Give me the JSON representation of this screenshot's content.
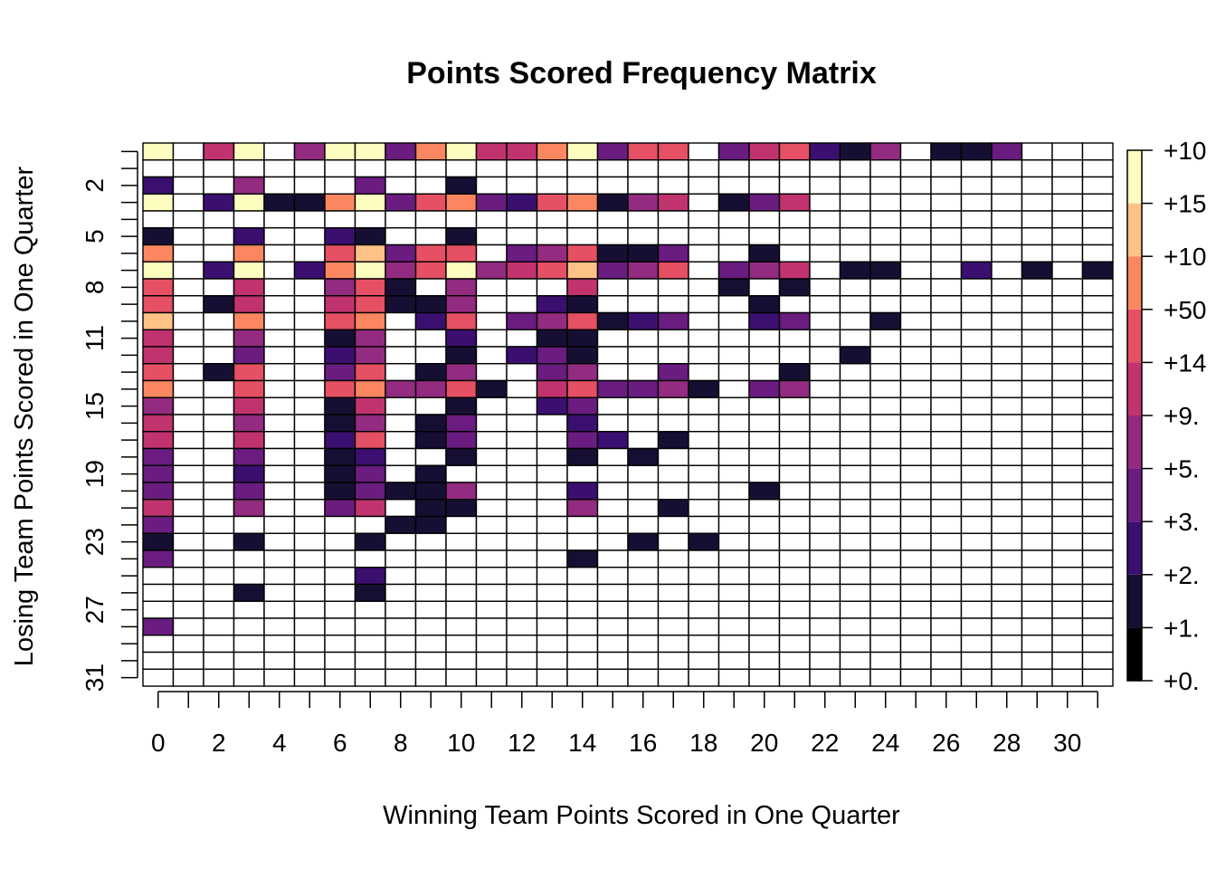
{
  "chart_data": {
    "type": "heatmap",
    "title": "Points Scored Frequency Matrix",
    "xlabel": "Winning Team Points Scored in One Quarter",
    "ylabel": "Losing Team Points Scored in One Quarter",
    "x_values": [
      0,
      1,
      2,
      3,
      4,
      5,
      6,
      7,
      8,
      9,
      10,
      11,
      12,
      13,
      14,
      15,
      16,
      17,
      18,
      19,
      20,
      21,
      22,
      23,
      24,
      25,
      26,
      27,
      28,
      29,
      30,
      31
    ],
    "y_values": [
      0,
      1,
      2,
      3,
      4,
      5,
      6,
      7,
      8,
      9,
      10,
      11,
      12,
      13,
      14,
      15,
      16,
      17,
      18,
      19,
      20,
      21,
      22,
      23,
      24,
      25,
      26,
      27,
      28,
      29,
      30,
      31
    ],
    "x_tick_labels": [
      "0",
      "2",
      "4",
      "6",
      "8",
      "10",
      "12",
      "14",
      "16",
      "18",
      "20",
      "22",
      "24",
      "26",
      "28",
      "30"
    ],
    "y_tick_labels": [
      "2",
      "5",
      "8",
      "11",
      "15",
      "19",
      "23",
      "27",
      "31"
    ],
    "legend_labels": [
      "+0.",
      "+1.",
      "+2.",
      "+3.",
      "+5.",
      "+9.",
      "+14",
      "+50",
      "+10",
      "+15",
      "+10"
    ],
    "colors": [
      "#000004",
      "#170F33",
      "#3B0F70",
      "#6A1C80",
      "#932B80",
      "#C1336F",
      "#E55064",
      "#FB8761",
      "#FEC287",
      "#FCFDBF"
    ],
    "grid": true,
    "legend": "right",
    "matrix": [
      [
        10,
        0,
        6,
        10,
        0,
        5,
        10,
        10,
        4,
        8,
        10,
        6,
        6,
        8,
        10,
        4,
        7,
        7,
        0,
        4,
        6,
        7,
        3,
        2,
        5,
        0,
        2,
        2,
        4,
        0,
        0,
        0
      ],
      [
        0,
        0,
        0,
        0,
        0,
        0,
        0,
        0,
        0,
        0,
        0,
        0,
        0,
        0,
        0,
        0,
        0,
        0,
        0,
        0,
        0,
        0,
        0,
        0,
        0,
        0,
        0,
        0,
        0,
        0,
        0,
        0
      ],
      [
        3,
        0,
        0,
        5,
        0,
        0,
        0,
        4,
        0,
        0,
        2,
        0,
        0,
        0,
        0,
        0,
        0,
        0,
        0,
        0,
        0,
        0,
        0,
        0,
        0,
        0,
        0,
        0,
        0,
        0,
        0,
        0
      ],
      [
        10,
        0,
        3,
        10,
        2,
        2,
        8,
        10,
        4,
        7,
        8,
        4,
        3,
        7,
        8,
        2,
        5,
        6,
        0,
        2,
        4,
        6,
        0,
        0,
        0,
        0,
        0,
        0,
        0,
        0,
        0,
        0
      ],
      [
        0,
        0,
        0,
        0,
        0,
        0,
        0,
        0,
        0,
        0,
        0,
        0,
        0,
        0,
        0,
        0,
        0,
        0,
        0,
        0,
        0,
        0,
        0,
        0,
        0,
        0,
        0,
        0,
        0,
        0,
        0,
        0
      ],
      [
        2,
        0,
        0,
        3,
        0,
        0,
        3,
        2,
        0,
        0,
        2,
        0,
        0,
        0,
        0,
        0,
        0,
        0,
        0,
        0,
        0,
        0,
        0,
        0,
        0,
        0,
        0,
        0,
        0,
        0,
        0,
        0
      ],
      [
        8,
        0,
        0,
        8,
        0,
        0,
        7,
        9,
        4,
        7,
        7,
        0,
        4,
        5,
        7,
        2,
        2,
        4,
        0,
        0,
        2,
        0,
        0,
        0,
        0,
        0,
        0,
        0,
        0,
        0,
        0,
        0
      ],
      [
        10,
        0,
        3,
        10,
        0,
        3,
        8,
        10,
        5,
        7,
        10,
        5,
        6,
        7,
        9,
        4,
        5,
        7,
        0,
        4,
        5,
        6,
        0,
        2,
        2,
        0,
        0,
        3,
        0,
        2,
        0,
        2
      ],
      [
        7,
        0,
        0,
        6,
        0,
        0,
        5,
        7,
        2,
        0,
        5,
        0,
        0,
        0,
        6,
        0,
        0,
        0,
        0,
        2,
        0,
        2,
        0,
        0,
        0,
        0,
        0,
        0,
        0,
        0,
        0,
        0
      ],
      [
        7,
        0,
        2,
        6,
        0,
        0,
        6,
        7,
        2,
        2,
        5,
        0,
        0,
        3,
        2,
        0,
        0,
        0,
        0,
        0,
        2,
        0,
        0,
        0,
        0,
        0,
        0,
        0,
        0,
        0,
        0,
        0
      ],
      [
        9,
        0,
        0,
        8,
        0,
        0,
        7,
        8,
        0,
        3,
        7,
        0,
        4,
        5,
        7,
        2,
        3,
        4,
        0,
        0,
        3,
        4,
        0,
        0,
        2,
        0,
        0,
        0,
        0,
        0,
        0,
        0
      ],
      [
        6,
        0,
        0,
        5,
        0,
        0,
        2,
        5,
        0,
        0,
        3,
        0,
        0,
        2,
        2,
        0,
        0,
        0,
        0,
        0,
        0,
        0,
        0,
        0,
        0,
        0,
        0,
        0,
        0,
        0,
        0,
        0
      ],
      [
        6,
        0,
        0,
        4,
        0,
        0,
        3,
        5,
        0,
        0,
        2,
        0,
        3,
        4,
        2,
        0,
        0,
        0,
        0,
        0,
        0,
        0,
        0,
        2,
        0,
        0,
        0,
        0,
        0,
        0,
        0,
        0
      ],
      [
        7,
        0,
        2,
        7,
        0,
        0,
        4,
        7,
        0,
        2,
        5,
        0,
        0,
        4,
        5,
        0,
        0,
        4,
        0,
        0,
        0,
        2,
        0,
        0,
        0,
        0,
        0,
        0,
        0,
        0,
        0,
        0
      ],
      [
        8,
        0,
        0,
        7,
        0,
        0,
        7,
        8,
        5,
        5,
        7,
        2,
        0,
        6,
        7,
        4,
        4,
        5,
        2,
        0,
        4,
        5,
        0,
        0,
        0,
        0,
        0,
        0,
        0,
        0,
        0,
        0
      ],
      [
        5,
        0,
        0,
        6,
        0,
        0,
        2,
        6,
        0,
        0,
        2,
        0,
        0,
        3,
        4,
        0,
        0,
        0,
        0,
        0,
        0,
        0,
        0,
        0,
        0,
        0,
        0,
        0,
        0,
        0,
        0,
        0
      ],
      [
        6,
        0,
        0,
        5,
        0,
        0,
        2,
        5,
        0,
        2,
        4,
        0,
        0,
        0,
        3,
        0,
        0,
        0,
        0,
        0,
        0,
        0,
        0,
        0,
        0,
        0,
        0,
        0,
        0,
        0,
        0,
        0
      ],
      [
        6,
        0,
        0,
        6,
        0,
        0,
        3,
        7,
        0,
        2,
        4,
        0,
        0,
        0,
        4,
        3,
        0,
        2,
        0,
        0,
        0,
        0,
        0,
        0,
        0,
        0,
        0,
        0,
        0,
        0,
        0,
        0
      ],
      [
        4,
        0,
        0,
        4,
        0,
        0,
        2,
        3,
        0,
        0,
        2,
        0,
        0,
        0,
        2,
        0,
        2,
        0,
        0,
        0,
        0,
        0,
        0,
        0,
        0,
        0,
        0,
        0,
        0,
        0,
        0,
        0
      ],
      [
        4,
        0,
        0,
        3,
        0,
        0,
        2,
        4,
        0,
        2,
        0,
        0,
        0,
        0,
        0,
        0,
        0,
        0,
        0,
        0,
        0,
        0,
        0,
        0,
        0,
        0,
        0,
        0,
        0,
        0,
        0,
        0
      ],
      [
        4,
        0,
        0,
        4,
        0,
        0,
        2,
        4,
        2,
        2,
        5,
        0,
        0,
        0,
        3,
        0,
        0,
        0,
        0,
        0,
        2,
        0,
        0,
        0,
        0,
        0,
        0,
        0,
        0,
        0,
        0,
        0
      ],
      [
        6,
        0,
        0,
        5,
        0,
        0,
        4,
        6,
        0,
        2,
        2,
        0,
        0,
        0,
        5,
        0,
        0,
        2,
        0,
        0,
        0,
        0,
        0,
        0,
        0,
        0,
        0,
        0,
        0,
        0,
        0,
        0
      ],
      [
        4,
        0,
        0,
        0,
        0,
        0,
        0,
        0,
        2,
        2,
        0,
        0,
        0,
        0,
        0,
        0,
        0,
        0,
        0,
        0,
        0,
        0,
        0,
        0,
        0,
        0,
        0,
        0,
        0,
        0,
        0,
        0
      ],
      [
        2,
        0,
        0,
        2,
        0,
        0,
        0,
        2,
        0,
        0,
        0,
        0,
        0,
        0,
        0,
        0,
        2,
        0,
        2,
        0,
        0,
        0,
        0,
        0,
        0,
        0,
        0,
        0,
        0,
        0,
        0,
        0
      ],
      [
        4,
        0,
        0,
        0,
        0,
        0,
        0,
        0,
        0,
        0,
        0,
        0,
        0,
        0,
        2,
        0,
        0,
        0,
        0,
        0,
        0,
        0,
        0,
        0,
        0,
        0,
        0,
        0,
        0,
        0,
        0,
        0
      ],
      [
        0,
        0,
        0,
        0,
        0,
        0,
        0,
        3,
        0,
        0,
        0,
        0,
        0,
        0,
        0,
        0,
        0,
        0,
        0,
        0,
        0,
        0,
        0,
        0,
        0,
        0,
        0,
        0,
        0,
        0,
        0,
        0
      ],
      [
        0,
        0,
        0,
        2,
        0,
        0,
        0,
        2,
        0,
        0,
        0,
        0,
        0,
        0,
        0,
        0,
        0,
        0,
        0,
        0,
        0,
        0,
        0,
        0,
        0,
        0,
        0,
        0,
        0,
        0,
        0,
        0
      ],
      [
        0,
        0,
        0,
        0,
        0,
        0,
        0,
        0,
        0,
        0,
        0,
        0,
        0,
        0,
        0,
        0,
        0,
        0,
        0,
        0,
        0,
        0,
        0,
        0,
        0,
        0,
        0,
        0,
        0,
        0,
        0,
        0
      ],
      [
        4,
        0,
        0,
        0,
        0,
        0,
        0,
        0,
        0,
        0,
        0,
        0,
        0,
        0,
        0,
        0,
        0,
        0,
        0,
        0,
        0,
        0,
        0,
        0,
        0,
        0,
        0,
        0,
        0,
        0,
        0,
        0
      ],
      [
        0,
        0,
        0,
        0,
        0,
        0,
        0,
        0,
        0,
        0,
        0,
        0,
        0,
        0,
        0,
        0,
        0,
        0,
        0,
        0,
        0,
        0,
        0,
        0,
        0,
        0,
        0,
        0,
        0,
        0,
        0,
        0
      ],
      [
        0,
        0,
        0,
        0,
        0,
        0,
        0,
        0,
        0,
        0,
        0,
        0,
        0,
        0,
        0,
        0,
        0,
        0,
        0,
        0,
        0,
        0,
        0,
        0,
        0,
        0,
        0,
        0,
        0,
        0,
        0,
        0
      ],
      [
        0,
        0,
        0,
        0,
        0,
        0,
        0,
        0,
        0,
        0,
        0,
        0,
        0,
        0,
        0,
        0,
        0,
        0,
        0,
        0,
        0,
        0,
        0,
        0,
        0,
        0,
        0,
        0,
        0,
        0,
        0,
        0
      ]
    ]
  }
}
